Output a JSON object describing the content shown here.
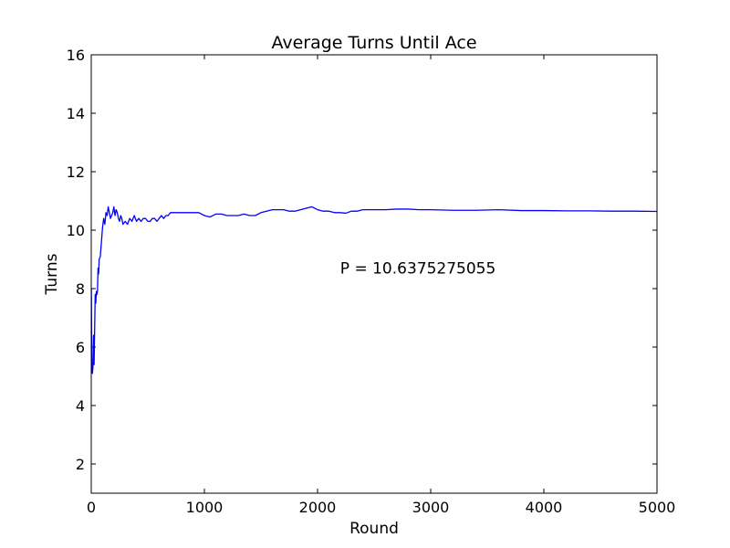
{
  "chart_data": {
    "type": "line",
    "title": "Average Turns Until Ace",
    "xlabel": "Round",
    "ylabel": "Turns",
    "xlim": [
      0,
      5000
    ],
    "ylim": [
      1,
      16
    ],
    "xticks": [
      0,
      1000,
      2000,
      3000,
      4000,
      5000
    ],
    "yticks": [
      2,
      4,
      6,
      8,
      10,
      12,
      14,
      16
    ],
    "grid": false,
    "annotation": {
      "text": "P = 10.6375275055",
      "x": 2200,
      "y": 8.7
    },
    "series": [
      {
        "color": "#0000ff",
        "x": [
          1,
          5,
          10,
          15,
          20,
          25,
          30,
          35,
          40,
          45,
          50,
          55,
          60,
          65,
          70,
          80,
          90,
          100,
          110,
          120,
          130,
          140,
          150,
          160,
          170,
          180,
          190,
          200,
          210,
          220,
          230,
          240,
          250,
          260,
          270,
          280,
          300,
          320,
          340,
          360,
          380,
          400,
          420,
          440,
          460,
          480,
          500,
          520,
          540,
          560,
          580,
          600,
          620,
          640,
          660,
          680,
          700,
          750,
          800,
          850,
          900,
          950,
          1000,
          1050,
          1100,
          1150,
          1200,
          1250,
          1300,
          1350,
          1400,
          1450,
          1500,
          1550,
          1600,
          1650,
          1700,
          1750,
          1800,
          1850,
          1900,
          1950,
          2000,
          2050,
          2100,
          2150,
          2200,
          2250,
          2300,
          2350,
          2400,
          2500,
          2600,
          2700,
          2800,
          2900,
          3000,
          3200,
          3400,
          3600,
          3800,
          4000,
          4200,
          4400,
          4600,
          4800,
          5000
        ],
        "y": [
          8.0,
          5.2,
          5.1,
          5.3,
          6.4,
          5.4,
          6.6,
          7.8,
          7.5,
          7.9,
          7.8,
          7.9,
          8.7,
          8.5,
          9.0,
          9.1,
          9.6,
          10.1,
          10.4,
          10.2,
          10.6,
          10.5,
          10.8,
          10.6,
          10.4,
          10.5,
          10.6,
          10.8,
          10.5,
          10.7,
          10.6,
          10.4,
          10.3,
          10.5,
          10.4,
          10.2,
          10.3,
          10.2,
          10.4,
          10.3,
          10.5,
          10.3,
          10.4,
          10.3,
          10.4,
          10.4,
          10.3,
          10.3,
          10.4,
          10.4,
          10.3,
          10.4,
          10.5,
          10.4,
          10.5,
          10.5,
          10.6,
          10.6,
          10.6,
          10.6,
          10.6,
          10.6,
          10.5,
          10.45,
          10.55,
          10.55,
          10.5,
          10.5,
          10.5,
          10.55,
          10.5,
          10.5,
          10.6,
          10.65,
          10.7,
          10.7,
          10.7,
          10.65,
          10.65,
          10.7,
          10.75,
          10.8,
          10.7,
          10.65,
          10.65,
          10.6,
          10.6,
          10.58,
          10.65,
          10.65,
          10.7,
          10.7,
          10.7,
          10.72,
          10.72,
          10.7,
          10.7,
          10.68,
          10.68,
          10.7,
          10.67,
          10.67,
          10.66,
          10.66,
          10.65,
          10.65,
          10.64
        ]
      }
    ]
  }
}
